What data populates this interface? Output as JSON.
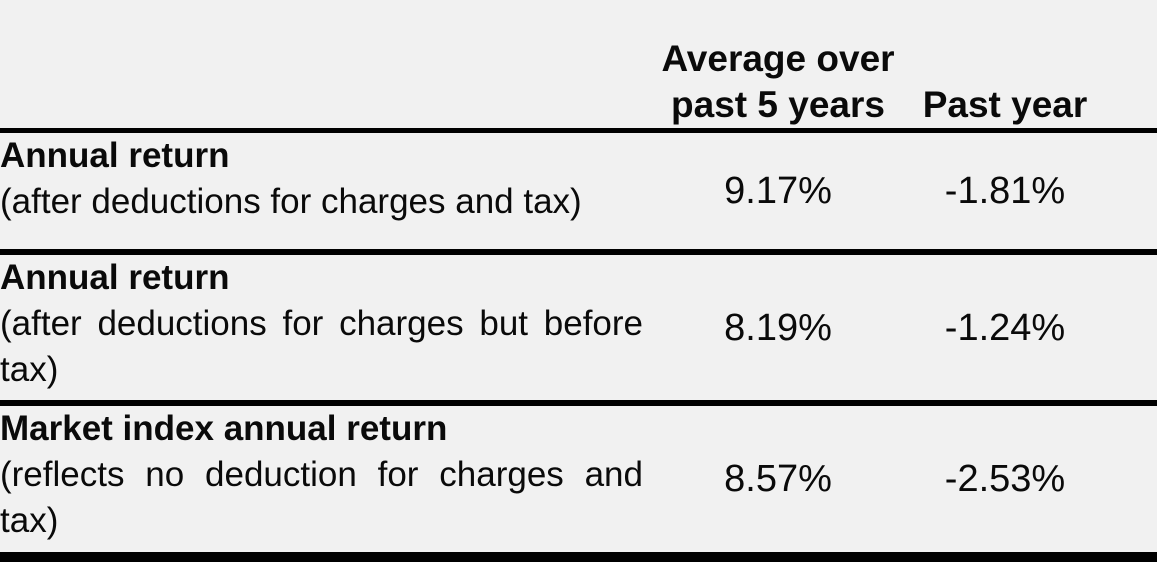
{
  "colors": {
    "background": "#f1f1f1",
    "rule": "#000000",
    "text": "#0a0a0a"
  },
  "table": {
    "header": {
      "average": "Average over past 5 years",
      "past_year": "Past year"
    },
    "rows": [
      {
        "title": "Annual return",
        "subtitle": "(after deductions for charges and tax)",
        "average": "9.17%",
        "past_year": "-1.81%"
      },
      {
        "title": "Annual return",
        "subtitle": "(after deductions for charges but before tax)",
        "average": "8.19%",
        "past_year": "-1.24%"
      },
      {
        "title": "Market index annual return",
        "subtitle": "(reflects no deduction for charges and tax)",
        "average": "8.57%",
        "past_year": "-2.53%"
      }
    ]
  },
  "chart_data": {
    "type": "table",
    "columns": [
      "",
      "Average over past 5 years",
      "Past year"
    ],
    "rows": [
      [
        "Annual return (after deductions for charges and tax)",
        "9.17%",
        "-1.81%"
      ],
      [
        "Annual return (after deductions for charges but before tax)",
        "8.19%",
        "-1.24%"
      ],
      [
        "Market index annual return (reflects no deduction for charges and tax)",
        "8.57%",
        "-2.53%"
      ]
    ]
  }
}
